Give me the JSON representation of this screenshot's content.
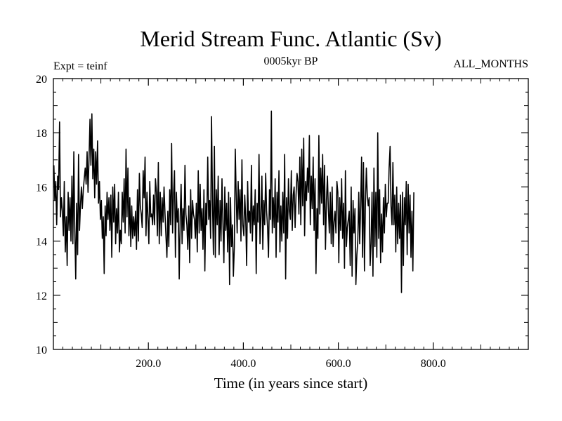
{
  "chart_data": {
    "type": "line",
    "title": "Merid Stream Func. Atlantic (Sv)",
    "subtitle_left": "Expt = teinf",
    "subtitle_center": "0005kyr BP",
    "subtitle_right": "ALL_MONTHS",
    "xlabel": "Time (in years since start)",
    "ylabel": "",
    "xlim": [
      0,
      1000
    ],
    "ylim": [
      10,
      20
    ],
    "x_ticks": [
      200,
      400,
      600,
      800
    ],
    "x_tick_labels": [
      "200.0",
      "400.0",
      "600.0",
      "800.0"
    ],
    "y_ticks": [
      10,
      12,
      14,
      16,
      18,
      20
    ],
    "y_tick_labels": [
      "10",
      "12",
      "14",
      "16",
      "18",
      "20"
    ],
    "grid": false,
    "series": [
      {
        "name": "Merid Stream Func. Atlantic",
        "x_start": 1,
        "x_step": 2,
        "values": [
          16.8,
          15.5,
          16.2,
          14.6,
          16.4,
          15.9,
          18.4,
          14.9,
          15.6,
          15.1,
          14.2,
          16.2,
          13.6,
          14.9,
          13.1,
          15.8,
          14.4,
          15.6,
          14.0,
          16.4,
          13.9,
          17.3,
          14.5,
          12.6,
          15.4,
          13.5,
          17.2,
          14.4,
          15.3,
          16.0,
          15.2,
          15.9,
          16.3,
          16.7,
          16.1,
          17.3,
          15.8,
          17.0,
          18.5,
          16.8,
          18.7,
          16.3,
          17.4,
          15.6,
          17.3,
          16.1,
          17.7,
          15.4,
          16.2,
          14.8,
          15.5,
          14.1,
          14.9,
          12.8,
          15.3,
          14.2,
          15.8,
          14.8,
          15.6,
          14.4,
          15.7,
          13.4,
          16.0,
          14.7,
          16.1,
          13.9,
          15.2,
          14.3,
          15.8,
          13.6,
          14.4,
          13.9,
          15.8,
          14.7,
          16.3,
          14.3,
          17.4,
          14.9,
          16.7,
          14.2,
          15.6,
          13.8,
          15.3,
          14.1,
          14.9,
          14.2,
          15.1,
          13.7,
          15.9,
          14.0,
          16.5,
          15.3,
          15.0,
          14.5,
          16.6,
          15.6,
          17.1,
          14.2,
          15.8,
          14.9,
          13.9,
          16.2,
          14.9,
          15.0,
          14.6,
          15.7,
          14.6,
          16.3,
          15.8,
          14.2,
          16.9,
          13.9,
          15.8,
          14.2,
          15.6,
          14.7,
          16.0,
          15.0,
          14.2,
          13.4,
          15.1,
          13.8,
          15.9,
          14.6,
          17.6,
          14.3,
          15.7,
          16.6,
          13.4,
          15.8,
          14.7,
          15.2,
          12.6,
          14.9,
          16.1,
          13.9,
          15.2,
          14.4,
          16.8,
          15.0,
          14.6,
          13.7,
          15.3,
          13.2,
          15.9,
          14.1,
          15.5,
          15.0,
          14.8,
          14.1,
          15.4,
          13.6,
          16.6,
          14.3,
          16.1,
          14.4,
          15.2,
          13.7,
          15.9,
          12.9,
          15.4,
          14.6,
          17.1,
          14.8,
          15.5,
          14.1,
          18.6,
          15.4,
          13.5,
          17.5,
          13.4,
          15.9,
          14.6,
          16.4,
          13.5,
          15.5,
          14.0,
          16.3,
          14.7,
          13.2,
          16.0,
          14.4,
          15.4,
          13.6,
          15.8,
          12.4,
          15.6,
          13.8,
          14.6,
          12.7,
          13.8,
          17.4,
          15.6,
          14.3,
          16.2,
          14.8,
          15.9,
          14.0,
          17.0,
          14.6,
          14.2,
          15.7,
          14.8,
          13.1,
          16.2,
          14.7,
          15.1,
          14.3,
          16.8,
          14.0,
          15.3,
          14.6,
          15.9,
          12.8,
          15.4,
          14.7,
          17.2,
          13.9,
          14.9,
          16.4,
          13.7,
          15.5,
          14.6,
          16.5,
          15.1,
          14.5,
          13.4,
          15.9,
          14.8,
          18.8,
          14.3,
          15.6,
          14.5,
          16.3,
          13.4,
          15.8,
          14.7,
          16.6,
          13.6,
          15.3,
          14.0,
          15.8,
          14.3,
          17.2,
          12.6,
          15.6,
          14.1,
          16.3,
          15.1,
          14.8,
          16.6,
          14.4,
          15.7,
          16.0,
          14.5,
          15.7,
          16.5,
          16.2,
          15.0,
          17.1,
          14.6,
          17.4,
          15.3,
          17.8,
          14.2,
          16.2,
          15.5,
          16.7,
          15.8,
          17.9,
          14.6,
          16.4,
          15.2,
          17.1,
          14.4,
          16.3,
          12.8,
          15.2,
          14.1,
          17.9,
          15.0,
          16.7,
          15.4,
          17.2,
          14.6,
          16.8,
          13.7,
          15.5,
          16.4,
          15.2,
          14.3,
          15.8,
          13.9,
          16.0,
          13.8,
          14.7,
          15.1,
          14.3,
          16.2,
          15.8,
          13.2,
          15.6,
          14.4,
          16.3,
          14.1,
          15.4,
          13.0,
          16.6,
          13.8,
          14.5,
          14.8,
          15.1,
          13.1,
          16.0,
          12.7,
          15.5,
          14.3,
          15.2,
          12.4,
          13.5,
          14.0,
          15.8,
          13.9,
          15.3,
          17.1,
          13.4,
          16.9,
          12.9,
          15.3,
          16.7,
          15.7,
          15.3,
          15.6,
          13.1,
          13.9,
          15.8,
          12.7,
          16.7,
          13.8,
          15.8,
          13.4,
          18.0,
          14.1,
          15.9,
          13.2,
          15.0,
          13.6,
          15.6,
          14.3,
          16.1,
          14.9,
          15.4,
          15.4,
          16.7,
          17.5,
          15.3,
          14.6,
          16.9,
          14.6,
          15.7,
          13.6,
          16.0,
          13.9,
          15.4,
          14.1,
          15.7,
          12.1,
          15.8,
          13.1,
          15.6,
          14.6,
          16.2,
          13.5,
          16.1,
          14.3,
          15.7,
          13.4,
          15.1,
          12.9,
          15.8
        ]
      }
    ]
  }
}
